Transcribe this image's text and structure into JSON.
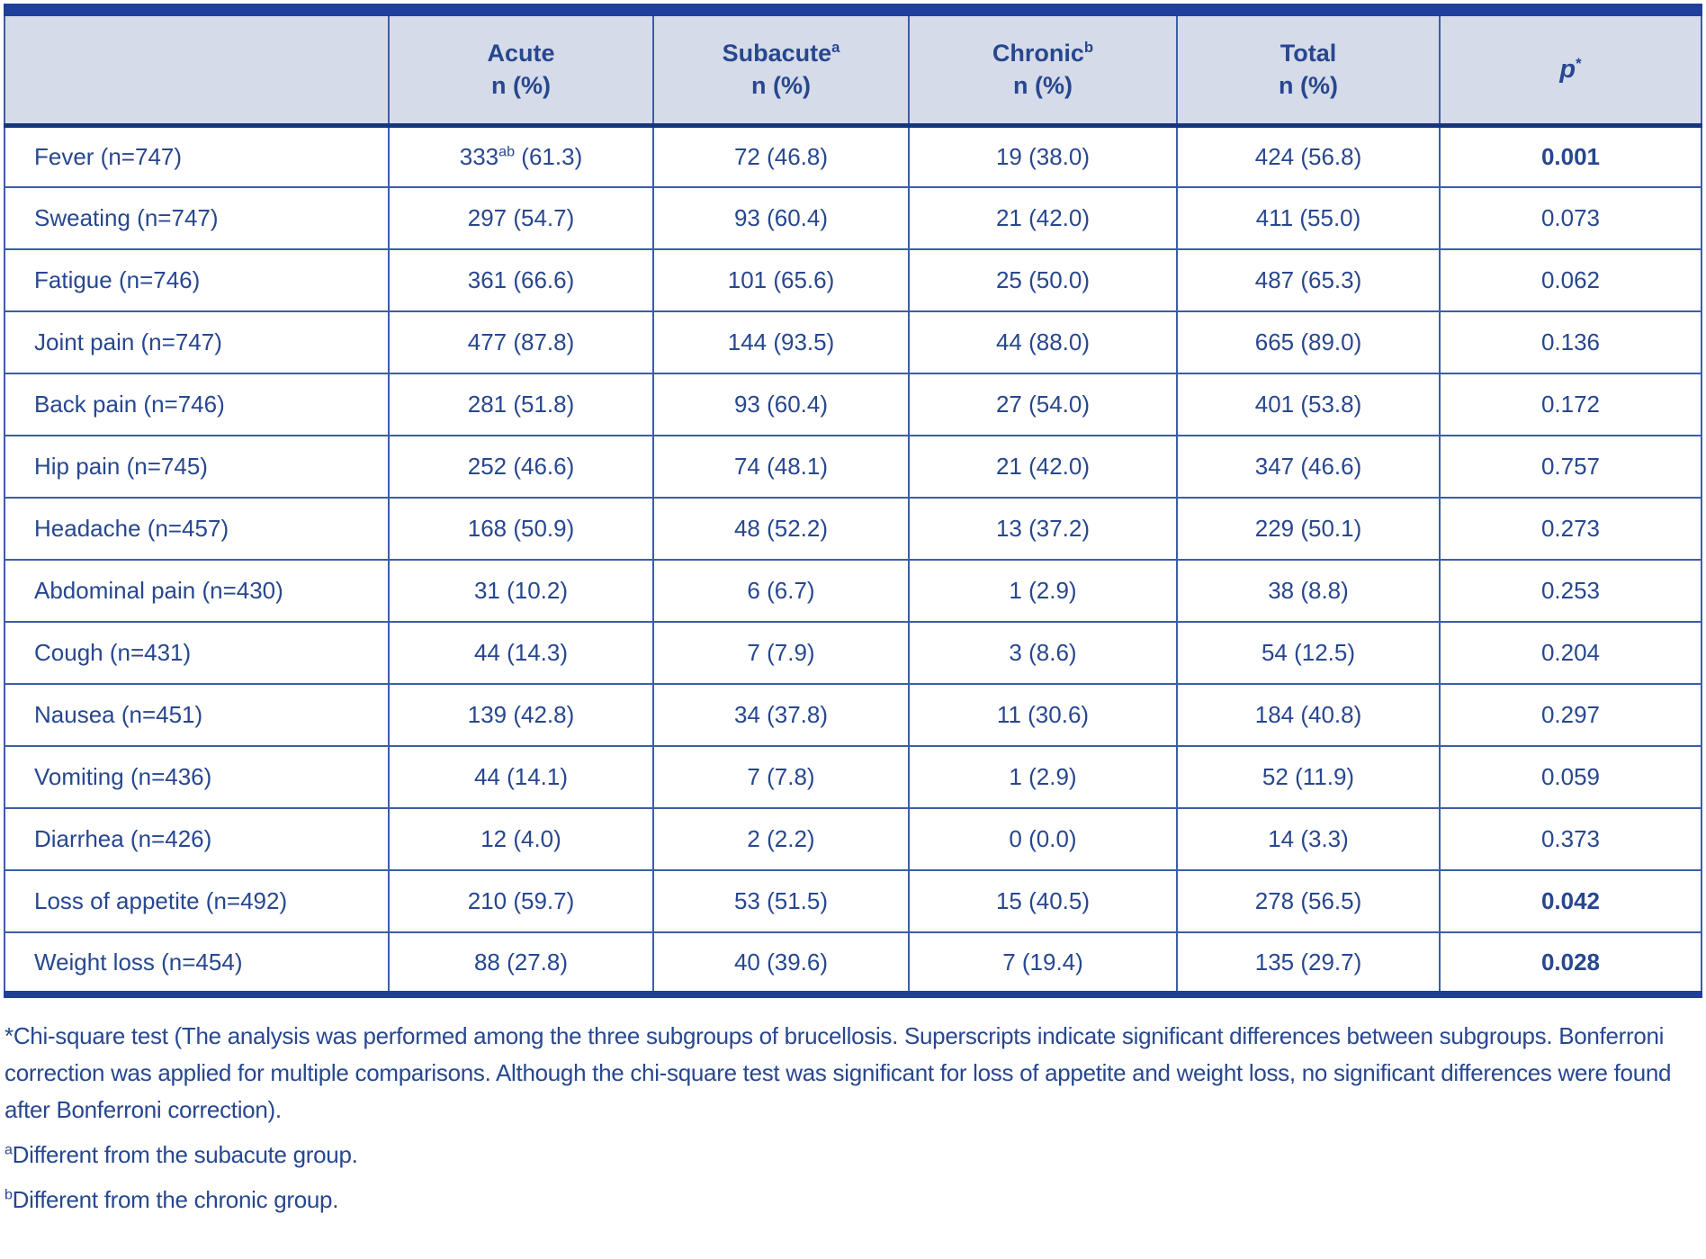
{
  "colors": {
    "bar": "#1f3f9a",
    "header-bg": "#d6dbe9",
    "text": "#27478f",
    "border-thin": "#3d5ca9",
    "border-dark": "#17357f",
    "bottom": "#1e3e9a"
  },
  "header": {
    "columns": [
      {
        "title": "",
        "sup": "",
        "sub": ""
      },
      {
        "title": "Acute",
        "sup": "",
        "sub": "n (%)"
      },
      {
        "title": "Subacute",
        "sup": "a",
        "sub": "n (%)"
      },
      {
        "title": "Chronic",
        "sup": "b",
        "sub": "n (%)"
      },
      {
        "title": "Total",
        "sup": "",
        "sub": "n (%)"
      },
      {
        "title": "p",
        "sup": "*",
        "sub": ""
      }
    ]
  },
  "rows": [
    {
      "label": "Fever (n=747)",
      "acute": {
        "pre": "333",
        "sup": "ab",
        "post": " (61.3)"
      },
      "subacute": "72 (46.8)",
      "chronic": "19 (38.0)",
      "total": "424 (56.8)",
      "p": "0.001",
      "p_bold": true
    },
    {
      "label": "Sweating (n=747)",
      "acute": "297 (54.7)",
      "subacute": "93 (60.4)",
      "chronic": "21 (42.0)",
      "total": "411 (55.0)",
      "p": "0.073",
      "p_bold": false
    },
    {
      "label": "Fatigue (n=746)",
      "acute": "361 (66.6)",
      "subacute": "101 (65.6)",
      "chronic": "25 (50.0)",
      "total": "487 (65.3)",
      "p": "0.062",
      "p_bold": false
    },
    {
      "label": "Joint pain (n=747)",
      "acute": "477 (87.8)",
      "subacute": "144 (93.5)",
      "chronic": "44 (88.0)",
      "total": "665 (89.0)",
      "p": "0.136",
      "p_bold": false
    },
    {
      "label": "Back pain (n=746)",
      "acute": "281 (51.8)",
      "subacute": "93 (60.4)",
      "chronic": "27 (54.0)",
      "total": "401 (53.8)",
      "p": "0.172",
      "p_bold": false
    },
    {
      "label": "Hip pain (n=745)",
      "acute": "252 (46.6)",
      "subacute": "74 (48.1)",
      "chronic": "21 (42.0)",
      "total": "347 (46.6)",
      "p": "0.757",
      "p_bold": false
    },
    {
      "label": "Headache (n=457)",
      "acute": "168 (50.9)",
      "subacute": "48 (52.2)",
      "chronic": "13 (37.2)",
      "total": "229 (50.1)",
      "p": "0.273",
      "p_bold": false
    },
    {
      "label": "Abdominal pain (n=430)",
      "acute": "31 (10.2)",
      "subacute": "6 (6.7)",
      "chronic": "1 (2.9)",
      "total": "38 (8.8)",
      "p": "0.253",
      "p_bold": false
    },
    {
      "label": "Cough (n=431)",
      "acute": "44 (14.3)",
      "subacute": "7 (7.9)",
      "chronic": "3 (8.6)",
      "total": "54 (12.5)",
      "p": "0.204",
      "p_bold": false
    },
    {
      "label": "Nausea (n=451)",
      "acute": "139 (42.8)",
      "subacute": "34 (37.8)",
      "chronic": "11 (30.6)",
      "total": "184 (40.8)",
      "p": "0.297",
      "p_bold": false
    },
    {
      "label": "Vomiting (n=436)",
      "acute": "44 (14.1)",
      "subacute": "7 (7.8)",
      "chronic": "1 (2.9)",
      "total": "52 (11.9)",
      "p": "0.059",
      "p_bold": false
    },
    {
      "label": "Diarrhea (n=426)",
      "acute": "12 (4.0)",
      "subacute": "2 (2.2)",
      "chronic": "0 (0.0)",
      "total": "14 (3.3)",
      "p": "0.373",
      "p_bold": false
    },
    {
      "label": "Loss of appetite (n=492)",
      "acute": "210 (59.7)",
      "subacute": "53 (51.5)",
      "chronic": "15 (40.5)",
      "total": "278 (56.5)",
      "p": "0.042",
      "p_bold": true
    },
    {
      "label": "Weight loss (n=454)",
      "acute": "88 (27.8)",
      "subacute": "40 (39.6)",
      "chronic": "7 (19.4)",
      "total": "135 (29.7)",
      "p": "0.028",
      "p_bold": true
    }
  ],
  "footnotes": [
    {
      "marker": "*",
      "text": "Chi-square test (The analysis was performed among the three subgroups of brucellosis. Superscripts indicate significant differences between subgroups. Bonferroni correction was applied for multiple comparisons. Although the chi-square test was significant for loss of appetite and weight loss, no significant differences were found after Bonferroni correction)."
    },
    {
      "marker": "a",
      "text": "Different from the subacute group."
    },
    {
      "marker": "b",
      "text": "Different from the chronic group."
    }
  ]
}
